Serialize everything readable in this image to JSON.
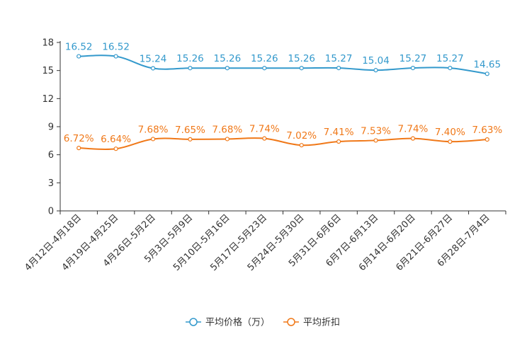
{
  "chart_data": {
    "type": "line",
    "categories": [
      "4月12日-4月18日",
      "4月19日-4月25日",
      "4月26日-5月2日",
      "5月3日-5月9日",
      "5月10日-5月16日",
      "5月17日-5月23日",
      "5月24日-5月30日",
      "5月31日-6月6日",
      "6月7日-6月13日",
      "6月14日-6月20日",
      "6月21日-6月27日",
      "6月28日-7月4日"
    ],
    "series": [
      {
        "name": "平均价格（万）",
        "color": "#3399cc",
        "values": [
          16.52,
          16.52,
          15.24,
          15.26,
          15.26,
          15.26,
          15.26,
          15.27,
          15.04,
          15.27,
          15.27,
          14.65
        ],
        "labels": [
          "16.52",
          "16.52",
          "15.24",
          "15.26",
          "15.26",
          "15.26",
          "15.26",
          "15.27",
          "15.04",
          "15.27",
          "15.27",
          "14.65"
        ]
      },
      {
        "name": "平均折扣",
        "color": "#f07818",
        "values": [
          6.72,
          6.64,
          7.68,
          7.65,
          7.68,
          7.74,
          7.02,
          7.41,
          7.53,
          7.74,
          7.4,
          7.63
        ],
        "labels": [
          "6.72%",
          "6.64%",
          "7.68%",
          "7.65%",
          "7.68%",
          "7.74%",
          "7.02%",
          "7.41%",
          "7.53%",
          "7.74%",
          "7.40%",
          "7.63%"
        ]
      }
    ],
    "ylim": [
      0,
      18
    ],
    "yticks": [
      "0",
      "3",
      "6",
      "9",
      "12",
      "15",
      "18"
    ],
    "legend_position": "bottom-center",
    "title": "",
    "xlabel": "",
    "ylabel": ""
  }
}
